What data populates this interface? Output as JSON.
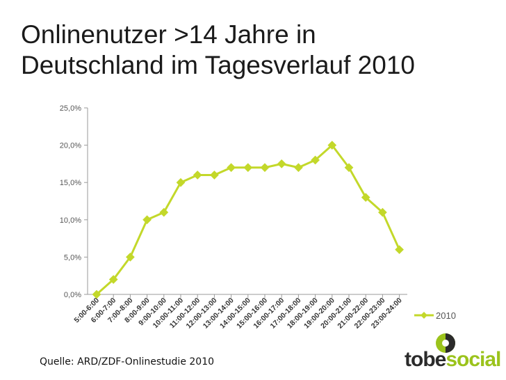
{
  "slide": {
    "title_line1": "Onlinenutzer >14 Jahre in",
    "title_line2": "Deutschland im Tagesverlauf 2010",
    "source": "Quelle: ARD/ZDF-Onlinestudie 2010"
  },
  "logo": {
    "part1": "tobe",
    "part2": "social"
  },
  "colors": {
    "series": "#c3d82a",
    "axis": "#9a9a9a",
    "logo_green": "#9bc31c",
    "logo_dark": "#2b2b2b"
  },
  "chart_data": {
    "type": "line",
    "title": "",
    "xlabel": "",
    "ylabel": "",
    "ylim": [
      0,
      25
    ],
    "yticks": [
      0,
      5,
      10,
      15,
      20,
      25
    ],
    "ytick_labels": [
      "0,0%",
      "5,0%",
      "10,0%",
      "15,0%",
      "20,0%",
      "25,0%"
    ],
    "grid": false,
    "legend": "right",
    "categories": [
      "5:00-6:00",
      "6:00-7:00",
      "7:00-8:00",
      "8:00-9:00",
      "9:00-10:00",
      "10:00-11:00",
      "11:00-12:00",
      "12:00-13:00",
      "13:00-14:00",
      "14:00-15:00",
      "15:00-16:00",
      "16:00-17:00",
      "17:00-18:00",
      "18:00-19:00",
      "19:00-20:00",
      "20:00-21:00",
      "21:00-22:00",
      "22:00-23:00",
      "23:00-24:00"
    ],
    "series": [
      {
        "name": "2010",
        "values": [
          0,
          2,
          5,
          10,
          11,
          15,
          16,
          16,
          17,
          17,
          17,
          17.5,
          17,
          18,
          20,
          17,
          13,
          11,
          6
        ]
      }
    ]
  }
}
